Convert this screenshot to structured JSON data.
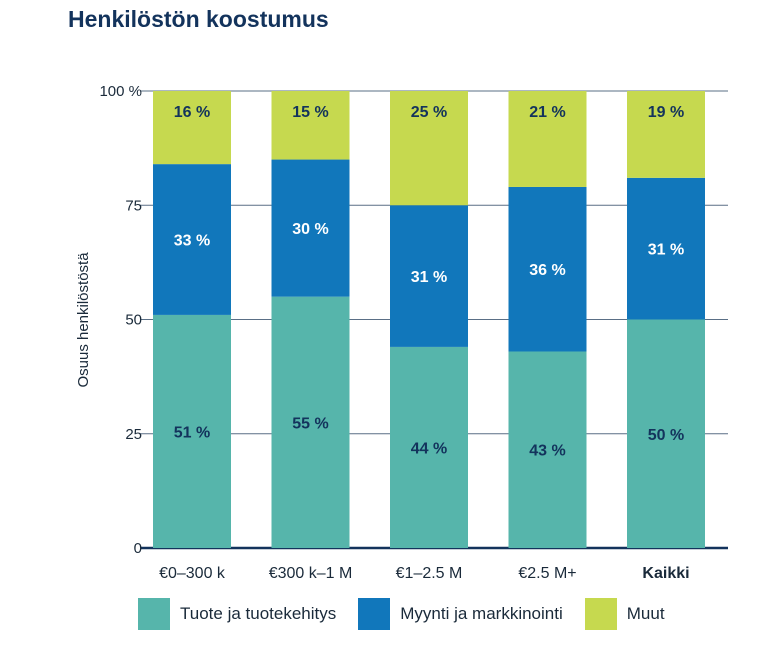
{
  "title": "Henkilöstön koostumus",
  "chart_data": {
    "type": "bar",
    "stacked": true,
    "title": "Henkilöstön koostumus",
    "ylabel": "Osuus henkilöstöstä",
    "ylim": [
      0,
      100
    ],
    "yticks": [
      "0",
      "25",
      "50",
      "75",
      "100 %"
    ],
    "grid": true,
    "legend_position": "bottom",
    "categories": [
      "€0–300 k",
      "€300 k–1 M",
      "€1–2.5 M",
      "€2.5 M+",
      "Kaikki"
    ],
    "series": [
      {
        "name": "Tuote ja tuotekehitys",
        "color": "#56b5ab",
        "text_color": "#13335c",
        "values": [
          51,
          55,
          44,
          43,
          50
        ],
        "labels": [
          "51 %",
          "55 %",
          "44 %",
          "43 %",
          "50 %"
        ]
      },
      {
        "name": "Myynti ja markkinointi",
        "color": "#1177bb",
        "text_color": "#ffffff",
        "values": [
          33,
          30,
          31,
          36,
          31
        ],
        "labels": [
          "33 %",
          "30 %",
          "31 %",
          "36 %",
          "31 %"
        ]
      },
      {
        "name": "Muut",
        "color": "#c6d94f",
        "text_color": "#13335c",
        "values": [
          16,
          15,
          25,
          21,
          19
        ],
        "labels": [
          "16 %",
          "15 %",
          "25 %",
          "21 %",
          "19 %"
        ]
      }
    ]
  }
}
